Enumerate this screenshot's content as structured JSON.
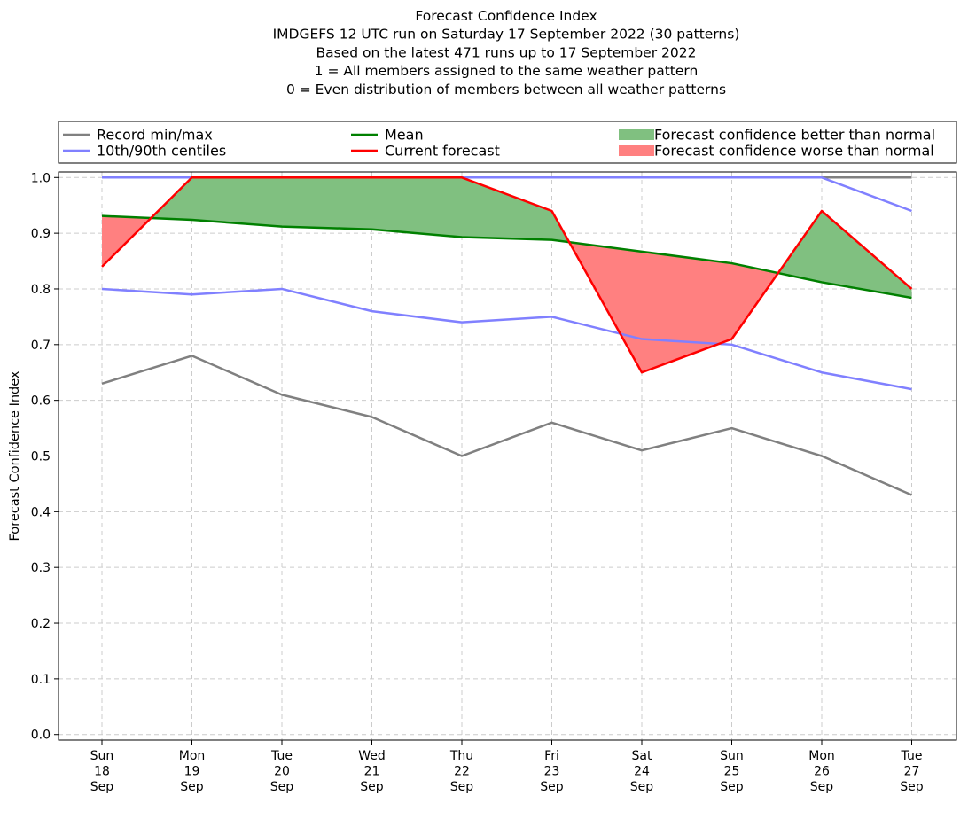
{
  "chart_data": {
    "type": "line",
    "title_lines": [
      "Forecast Confidence Index",
      "IMDGEFS 12 UTC run on Saturday 17 September 2022 (30 patterns)",
      "Based on the latest 471 runs up to 17 September 2022",
      "1 = All members assigned to the same weather pattern",
      "0 = Even distribution of members between all weather patterns"
    ],
    "ylabel": "Forecast Confidence Index",
    "ylim": [
      -0.01,
      1.01
    ],
    "yticks": [
      "0.0",
      "0.1",
      "0.2",
      "0.3",
      "0.4",
      "0.5",
      "0.6",
      "0.7",
      "0.8",
      "0.9",
      "1.0"
    ],
    "categories": [
      [
        "Sun",
        "18",
        "Sep"
      ],
      [
        "Mon",
        "19",
        "Sep"
      ],
      [
        "Tue",
        "20",
        "Sep"
      ],
      [
        "Wed",
        "21",
        "Sep"
      ],
      [
        "Thu",
        "22",
        "Sep"
      ],
      [
        "Fri",
        "23",
        "Sep"
      ],
      [
        "Sat",
        "24",
        "Sep"
      ],
      [
        "Sun",
        "25",
        "Sep"
      ],
      [
        "Mon",
        "26",
        "Sep"
      ],
      [
        "Tue",
        "27",
        "Sep"
      ]
    ],
    "grid": true,
    "legend_position": "top",
    "series": [
      {
        "name": "Record min/max",
        "role": "record_max",
        "color": "#808080",
        "values": [
          1.0,
          1.0,
          1.0,
          1.0,
          1.0,
          1.0,
          1.0,
          1.0,
          1.0,
          1.0
        ]
      },
      {
        "name": "Record min/max",
        "role": "record_min",
        "color": "#808080",
        "values": [
          0.63,
          0.68,
          0.61,
          0.57,
          0.5,
          0.56,
          0.51,
          0.55,
          0.5,
          0.43
        ]
      },
      {
        "name": "10th/90th centiles",
        "role": "p90",
        "color": "#8080ff",
        "values": [
          1.0,
          1.0,
          1.0,
          1.0,
          1.0,
          1.0,
          1.0,
          1.0,
          1.0,
          0.94
        ]
      },
      {
        "name": "10th/90th centiles",
        "role": "p10",
        "color": "#8080ff",
        "values": [
          0.8,
          0.79,
          0.8,
          0.76,
          0.74,
          0.75,
          0.71,
          0.7,
          0.65,
          0.62
        ]
      },
      {
        "name": "Mean",
        "role": "mean",
        "color": "#008000",
        "values": [
          0.931,
          0.924,
          0.912,
          0.907,
          0.893,
          0.888,
          0.867,
          0.846,
          0.812,
          0.784
        ]
      },
      {
        "name": "Current forecast",
        "role": "current",
        "color": "#ff0000",
        "values": [
          0.84,
          1.0,
          1.0,
          1.0,
          1.0,
          0.94,
          0.65,
          0.71,
          0.94,
          0.8
        ]
      }
    ],
    "legend": [
      {
        "label": "Record min/max",
        "kind": "line",
        "color": "#808080"
      },
      {
        "label": "10th/90th centiles",
        "kind": "line",
        "color": "#8080ff"
      },
      {
        "label": "Mean",
        "kind": "line",
        "color": "#008000"
      },
      {
        "label": "Current forecast",
        "kind": "line",
        "color": "#ff0000"
      },
      {
        "label": "Forecast confidence better than normal",
        "kind": "patch",
        "color": "#80c080"
      },
      {
        "label": "Forecast confidence worse than normal",
        "kind": "patch",
        "color": "#ff8080"
      }
    ],
    "fill_colors": {
      "better": "#80c080",
      "worse": "#ff8080"
    }
  }
}
